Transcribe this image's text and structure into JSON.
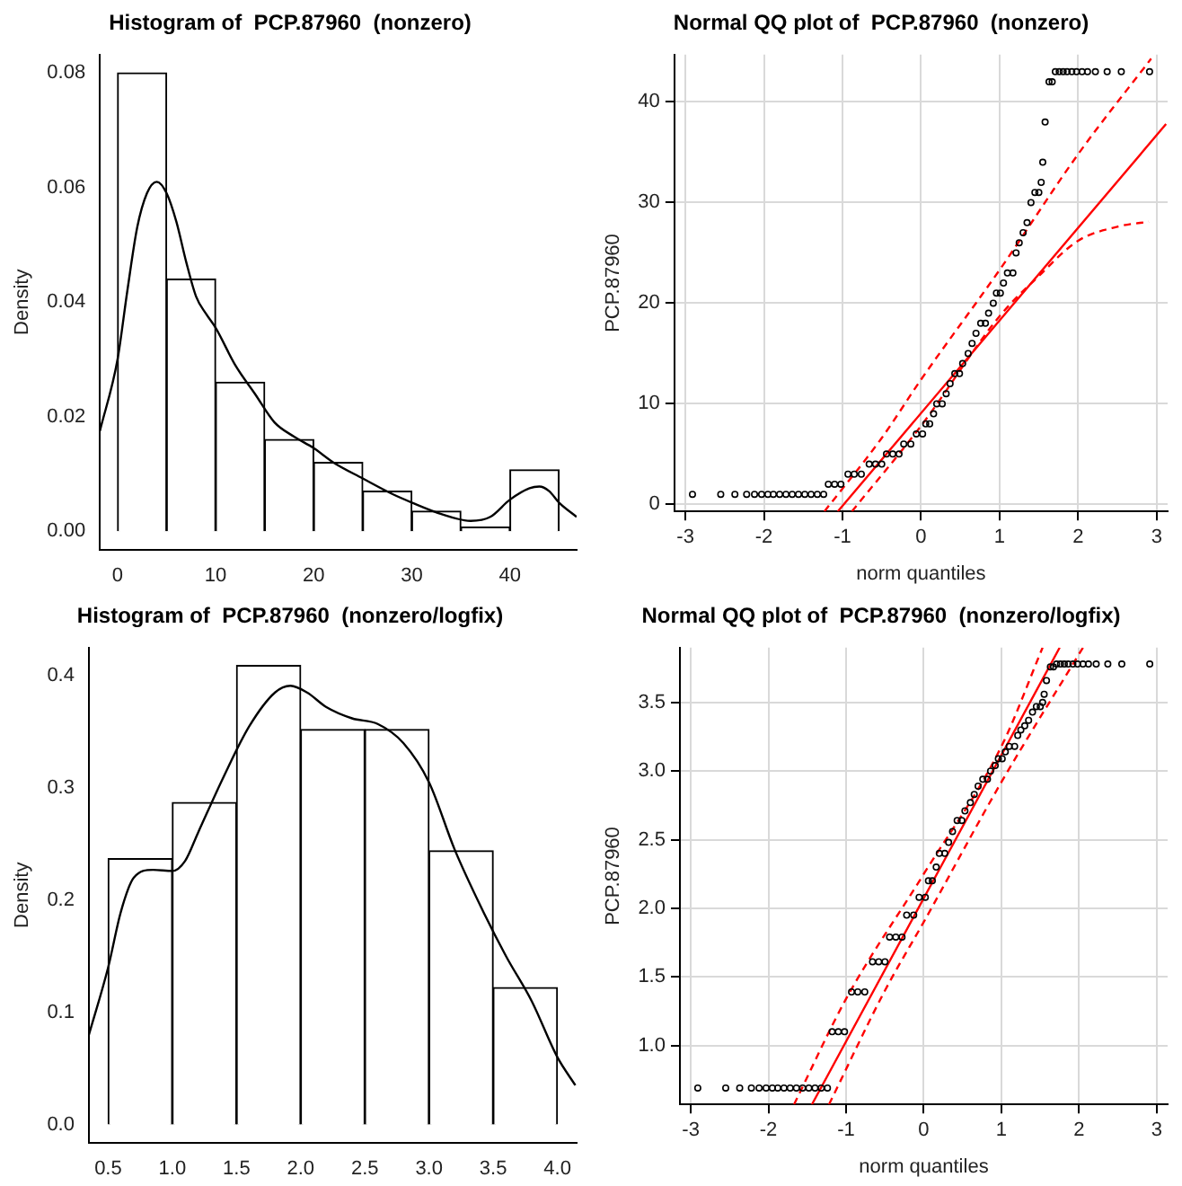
{
  "chart_data": [
    {
      "type": "histogram",
      "title": "Histogram of  PCP.87960  (nonzero)",
      "ylabel": "Density",
      "bins": [
        0,
        5,
        10,
        15,
        20,
        25,
        30,
        35,
        40,
        45
      ],
      "values": [
        0.08,
        0.044,
        0.026,
        0.016,
        0.012,
        0.007,
        0.0035,
        0.0007,
        0.0107
      ],
      "color": "#ffffff",
      "series": [
        {
          "type": "line",
          "color": "#000000",
          "x": [
            -1.8,
            0,
            1,
            2,
            3,
            4,
            5,
            6,
            7,
            8,
            9,
            10,
            12,
            14,
            16,
            18,
            20,
            22,
            25,
            28,
            30,
            33,
            36,
            38,
            40,
            42,
            43,
            44,
            45,
            46.8
          ],
          "values": [
            0.0175,
            0.03,
            0.042,
            0.053,
            0.059,
            0.061,
            0.059,
            0.054,
            0.047,
            0.041,
            0.038,
            0.0355,
            0.029,
            0.024,
            0.019,
            0.0165,
            0.0145,
            0.012,
            0.0092,
            0.0065,
            0.005,
            0.003,
            0.0018,
            0.0025,
            0.0055,
            0.0075,
            0.0078,
            0.007,
            0.005,
            0.0025
          ]
        }
      ],
      "xlim": [
        -1.8,
        46.8
      ],
      "ylim": [
        -0.0032,
        0.0832
      ],
      "xticks": [
        0,
        10,
        20,
        30,
        40
      ],
      "yticks": [
        {
          "value": 0,
          "label": "0.00"
        },
        {
          "value": 0.02,
          "label": "0.02"
        },
        {
          "value": 0.04,
          "label": "0.04"
        },
        {
          "value": 0.06,
          "label": "0.06"
        },
        {
          "value": 0.08,
          "label": "0.08"
        }
      ]
    },
    {
      "type": "scatter",
      "title": "Normal QQ plot of  PCP.87960  (nonzero)",
      "xlabel": "norm quantiles",
      "ylabel": "PCP.87960",
      "grid": true,
      "series": [
        {
          "type": "scatter",
          "color": "#000000",
          "marker": "circle",
          "x": [
            -2.91,
            -2.55,
            -2.37,
            -2.22,
            -2.12,
            -2.03,
            -1.95,
            -1.88,
            -1.8,
            -1.72,
            -1.64,
            -1.56,
            -1.48,
            -1.4,
            -1.32,
            -1.24,
            -1.18,
            -1.1,
            -1.02,
            -0.93,
            -0.85,
            -0.76,
            -0.66,
            -0.58,
            -0.5,
            -0.44,
            -0.36,
            -0.28,
            -0.22,
            -0.13,
            -0.06,
            0.02,
            0.06,
            0.11,
            0.16,
            0.2,
            0.27,
            0.32,
            0.37,
            0.43,
            0.49,
            0.53,
            0.6,
            0.65,
            0.7,
            0.76,
            0.82,
            0.86,
            0.92,
            0.96,
            1.01,
            1.05,
            1.1,
            1.17,
            1.21,
            1.25,
            1.3,
            1.35,
            1.4,
            1.45,
            1.5,
            1.53,
            1.55,
            1.58,
            1.63,
            1.67,
            1.71,
            1.76,
            1.81,
            1.86,
            1.92,
            1.98,
            2.05,
            2.12,
            2.22,
            2.37,
            2.55,
            2.91
          ],
          "values": [
            1,
            1,
            1,
            1,
            1,
            1,
            1,
            1,
            1,
            1,
            1,
            1,
            1,
            1,
            1,
            1,
            2,
            2,
            2,
            3,
            3,
            3,
            4,
            4,
            4,
            5,
            5,
            5,
            6,
            6,
            7,
            7,
            8,
            8,
            9,
            10,
            10,
            11,
            12,
            13,
            13,
            14,
            15,
            16,
            17,
            18,
            18,
            19,
            20,
            21,
            21,
            22,
            23,
            23,
            25,
            26,
            27,
            28,
            30,
            31,
            31,
            32,
            34,
            38,
            42,
            42,
            43,
            43,
            43,
            43,
            43,
            43,
            43,
            43,
            43,
            43,
            43,
            43
          ]
        },
        {
          "type": "line",
          "color": "#ff0000",
          "marker": "none",
          "x": [
            -1.06,
            3.12
          ],
          "values": [
            -0.7,
            37.8
          ]
        },
        {
          "type": "line",
          "color": "#ff0000",
          "marker": "none",
          "line_style": "dashed",
          "x": [
            -1.23,
            -0.5,
            0,
            1,
            2,
            2.93
          ],
          "values": [
            -0.7,
            6.6,
            12.4,
            23.3,
            34.8,
            44.3
          ]
        },
        {
          "type": "line",
          "color": "#ff0000",
          "marker": "none",
          "line_style": "dashed",
          "x": [
            -0.88,
            0,
            1,
            1.5,
            2,
            2.5,
            2.9
          ],
          "values": [
            -0.7,
            7.8,
            18.7,
            22.7,
            26.2,
            27.6,
            28.1
          ]
        }
      ],
      "xlim": [
        -3.14,
        3.14
      ],
      "ylim": [
        -0.7,
        44.7
      ],
      "xticks": [
        -3,
        -2,
        -1,
        0,
        1,
        2,
        3
      ],
      "yticks": [
        0,
        10,
        20,
        30,
        40
      ]
    },
    {
      "type": "histogram",
      "title": "Histogram of  PCP.87960  (nonzero/logfix)",
      "ylabel": "Density",
      "bins": [
        0.5,
        1.0,
        1.5,
        2.0,
        2.5,
        3.0,
        3.5,
        4.0
      ],
      "values": [
        0.237,
        0.287,
        0.409,
        0.352,
        0.352,
        0.244,
        0.122
      ],
      "color": "#ffffff",
      "series": [
        {
          "type": "line",
          "color": "#000000",
          "x": [
            0.35,
            0.5,
            0.6,
            0.7,
            0.85,
            1.0,
            1.1,
            1.2,
            1.4,
            1.6,
            1.8,
            1.92,
            2.05,
            2.2,
            2.4,
            2.6,
            2.8,
            3.0,
            3.2,
            3.4,
            3.6,
            3.8,
            4.0,
            4.14
          ],
          "values": [
            0.08,
            0.14,
            0.19,
            0.22,
            0.227,
            0.226,
            0.235,
            0.26,
            0.31,
            0.355,
            0.385,
            0.391,
            0.385,
            0.372,
            0.362,
            0.357,
            0.34,
            0.305,
            0.245,
            0.195,
            0.15,
            0.11,
            0.06,
            0.035
          ]
        }
      ],
      "xlim": [
        0.35,
        4.15
      ],
      "ylim": [
        -0.016,
        0.425
      ],
      "xticks": [
        {
          "value": 0.5,
          "label": "0.5"
        },
        {
          "value": 1,
          "label": "1.0"
        },
        {
          "value": 1.5,
          "label": "1.5"
        },
        {
          "value": 2,
          "label": "2.0"
        },
        {
          "value": 2.5,
          "label": "2.5"
        },
        {
          "value": 3,
          "label": "3.0"
        },
        {
          "value": 3.5,
          "label": "3.5"
        },
        {
          "value": 4,
          "label": "4.0"
        }
      ],
      "yticks": [
        {
          "value": 0,
          "label": "0.0"
        },
        {
          "value": 0.1,
          "label": "0.1"
        },
        {
          "value": 0.2,
          "label": "0.2"
        },
        {
          "value": 0.3,
          "label": "0.3"
        },
        {
          "value": 0.4,
          "label": "0.4"
        }
      ]
    },
    {
      "type": "scatter",
      "title": "Normal QQ plot of  PCP.87960  (nonzero/logfix)",
      "xlabel": "norm quantiles",
      "ylabel": "PCP.87960",
      "grid": true,
      "series": [
        {
          "type": "scatter",
          "color": "#000000",
          "marker": "circle",
          "x": [
            -2.91,
            -2.55,
            -2.37,
            -2.22,
            -2.12,
            -2.03,
            -1.95,
            -1.88,
            -1.8,
            -1.72,
            -1.64,
            -1.56,
            -1.48,
            -1.4,
            -1.32,
            -1.24,
            -1.18,
            -1.1,
            -1.02,
            -0.93,
            -0.85,
            -0.76,
            -0.66,
            -0.58,
            -0.5,
            -0.44,
            -0.36,
            -0.28,
            -0.22,
            -0.13,
            -0.06,
            0.02,
            0.06,
            0.11,
            0.16,
            0.2,
            0.27,
            0.32,
            0.37,
            0.43,
            0.49,
            0.53,
            0.6,
            0.65,
            0.7,
            0.76,
            0.82,
            0.86,
            0.92,
            0.96,
            1.01,
            1.05,
            1.1,
            1.17,
            1.21,
            1.25,
            1.3,
            1.35,
            1.4,
            1.45,
            1.5,
            1.53,
            1.55,
            1.58,
            1.63,
            1.67,
            1.71,
            1.76,
            1.81,
            1.86,
            1.92,
            1.98,
            2.05,
            2.12,
            2.22,
            2.37,
            2.55,
            2.91
          ],
          "values": [
            0.69,
            0.69,
            0.69,
            0.69,
            0.69,
            0.69,
            0.69,
            0.69,
            0.69,
            0.69,
            0.69,
            0.69,
            0.69,
            0.69,
            0.69,
            0.69,
            1.1,
            1.1,
            1.1,
            1.39,
            1.39,
            1.39,
            1.61,
            1.61,
            1.61,
            1.79,
            1.79,
            1.79,
            1.95,
            1.95,
            2.08,
            2.08,
            2.2,
            2.2,
            2.3,
            2.4,
            2.4,
            2.48,
            2.56,
            2.64,
            2.64,
            2.71,
            2.77,
            2.83,
            2.89,
            2.94,
            2.94,
            3.0,
            3.04,
            3.09,
            3.09,
            3.14,
            3.18,
            3.18,
            3.26,
            3.3,
            3.33,
            3.37,
            3.43,
            3.47,
            3.47,
            3.5,
            3.56,
            3.66,
            3.76,
            3.76,
            3.78,
            3.78,
            3.78,
            3.78,
            3.78,
            3.78,
            3.78,
            3.78,
            3.78,
            3.78,
            3.78,
            3.78
          ]
        },
        {
          "type": "line",
          "color": "#ff0000",
          "marker": "none",
          "x": [
            -1.44,
            1.75
          ],
          "values": [
            0.57,
            3.9
          ]
        },
        {
          "type": "line",
          "color": "#ff0000",
          "marker": "none",
          "line_style": "dashed",
          "x": [
            -1.67,
            -1,
            0,
            1,
            1.53
          ],
          "values": [
            0.57,
            1.34,
            2.25,
            3.18,
            3.9
          ]
        },
        {
          "type": "line",
          "color": "#ff0000",
          "marker": "none",
          "line_style": "dashed",
          "x": [
            -1.22,
            -0.5,
            0,
            1,
            2.05
          ],
          "values": [
            0.57,
            1.4,
            1.9,
            2.92,
            3.9
          ]
        }
      ],
      "xlim": [
        -3.14,
        3.14
      ],
      "ylim": [
        0.57,
        3.9
      ],
      "xticks": [
        -3,
        -2,
        -1,
        0,
        1,
        2,
        3
      ],
      "yticks": [
        {
          "value": 1,
          "label": "1.0"
        },
        {
          "value": 1.5,
          "label": "1.5"
        },
        {
          "value": 2,
          "label": "2.0"
        },
        {
          "value": 2.5,
          "label": "2.5"
        },
        {
          "value": 3,
          "label": "3.0"
        },
        {
          "value": 3.5,
          "label": "3.5"
        }
      ]
    }
  ]
}
